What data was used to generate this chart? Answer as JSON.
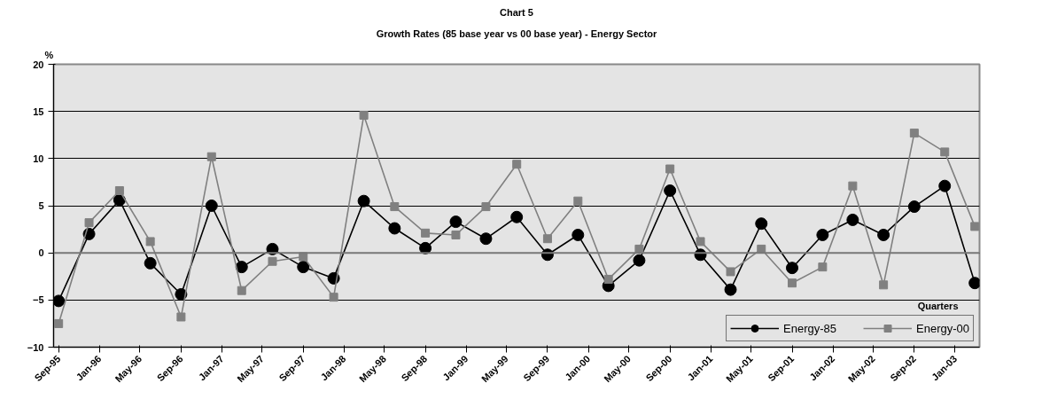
{
  "chart_data": {
    "type": "line",
    "title": "Chart 5",
    "subtitle": "Growth Rates (85 base year vs 00 base year) - Energy Sector",
    "xlabel": "Quarters",
    "ylabel": "%",
    "x": [
      "1995-09",
      "1995-12",
      "1996-03",
      "1996-06",
      "1996-09",
      "1996-12",
      "1997-03",
      "1997-06",
      "1997-09",
      "1997-12",
      "1998-03",
      "1998-06",
      "1998-09",
      "1998-12",
      "1999-03",
      "1999-06",
      "1999-09",
      "1999-12",
      "2000-03",
      "2000-06",
      "2000-09",
      "2000-12",
      "2001-03",
      "2001-06",
      "2001-09",
      "2001-12",
      "2002-03",
      "2002-06",
      "2002-09",
      "2002-12",
      "2003-03"
    ],
    "series": [
      {
        "name": "Energy-85",
        "color": "#000000",
        "marker": "circle",
        "values": [
          -5.1,
          2.0,
          5.6,
          -1.1,
          -4.4,
          5.0,
          -1.5,
          0.4,
          -1.5,
          -2.7,
          5.5,
          2.6,
          0.5,
          3.3,
          1.5,
          3.8,
          -0.2,
          1.9,
          -3.5,
          -0.8,
          6.6,
          -0.2,
          -3.9,
          3.1,
          -1.6,
          1.9,
          3.5,
          1.9,
          4.9,
          7.1,
          -3.2
        ]
      },
      {
        "name": "Energy-00",
        "color": "#808080",
        "marker": "square",
        "values": [
          -7.5,
          3.2,
          6.6,
          1.2,
          -6.8,
          10.2,
          -4.0,
          -0.9,
          -0.4,
          -4.7,
          14.6,
          4.9,
          2.1,
          1.9,
          4.9,
          9.4,
          1.5,
          5.5,
          -2.8,
          0.4,
          8.9,
          1.2,
          -2.0,
          0.4,
          -3.2,
          -1.5,
          7.1,
          -3.4,
          12.7,
          10.7,
          2.8
        ]
      }
    ],
    "xlim": [
      "1995-08-17",
      "2003-03-15"
    ],
    "xticks": [
      {
        "value": "1995-09",
        "label": "Sep-95"
      },
      {
        "value": "1996-01",
        "label": "Jan-96"
      },
      {
        "value": "1996-05",
        "label": "May-96"
      },
      {
        "value": "1996-09",
        "label": "Sep-96"
      },
      {
        "value": "1997-01",
        "label": "Jan-97"
      },
      {
        "value": "1997-05",
        "label": "May-97"
      },
      {
        "value": "1997-09",
        "label": "Sep-97"
      },
      {
        "value": "1998-01",
        "label": "Jan-98"
      },
      {
        "value": "1998-05",
        "label": "May-98"
      },
      {
        "value": "1998-09",
        "label": "Sep-98"
      },
      {
        "value": "1999-01",
        "label": "Jan-99"
      },
      {
        "value": "1999-05",
        "label": "May-99"
      },
      {
        "value": "1999-09",
        "label": "Sep-99"
      },
      {
        "value": "2000-01",
        "label": "Jan-00"
      },
      {
        "value": "2000-05",
        "label": "May-00"
      },
      {
        "value": "2000-09",
        "label": "Sep-00"
      },
      {
        "value": "2001-01",
        "label": "Jan-01"
      },
      {
        "value": "2001-05",
        "label": "May-01"
      },
      {
        "value": "2001-09",
        "label": "Sep-01"
      },
      {
        "value": "2002-01",
        "label": "Jan-02"
      },
      {
        "value": "2002-05",
        "label": "May-02"
      },
      {
        "value": "2002-09",
        "label": "Sep-02"
      },
      {
        "value": "2003-01",
        "label": "Jan-03"
      }
    ],
    "ylim": [
      -10,
      20
    ],
    "yticks": [
      -10,
      -5,
      0,
      5,
      10,
      15,
      20
    ],
    "grid": "y",
    "legend": "bottom right",
    "line_style": "solid"
  }
}
